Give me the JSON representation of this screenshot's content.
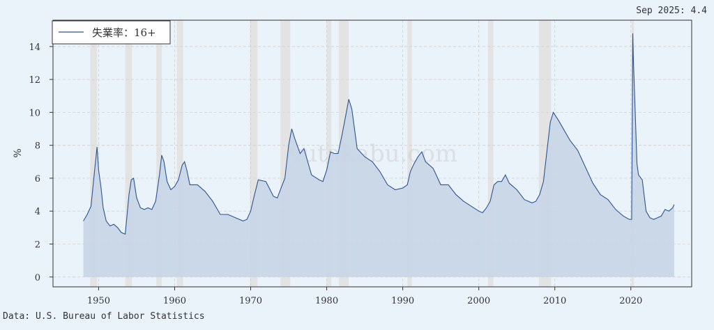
{
  "latest": "Sep 2025: 4.4",
  "source": "Data: U.S. Bureau of Labor Statistics",
  "watermark": "yutakabu.com",
  "chart_data": {
    "type": "area",
    "ylabel": "%",
    "legend": "失業率：16+",
    "legend_position": "top-left",
    "grid": true,
    "xlim": [
      1944.0,
      2028.0
    ],
    "ylim": [
      -0.6,
      15.6
    ],
    "xticks": [
      1950,
      1960,
      1970,
      1980,
      1990,
      2000,
      2010,
      2020
    ],
    "yticks": [
      0,
      2,
      4,
      6,
      8,
      10,
      12,
      14
    ],
    "colors": {
      "line": "#2b5493",
      "fill": "#c8d5e6",
      "recession": "#e3e3e3"
    },
    "recessions": [
      [
        1948.9,
        1949.8
      ],
      [
        1953.5,
        1954.4
      ],
      [
        1957.6,
        1958.3
      ],
      [
        1960.3,
        1961.1
      ],
      [
        1969.9,
        1970.9
      ],
      [
        1973.9,
        1975.2
      ],
      [
        1980.0,
        1980.6
      ],
      [
        1981.6,
        1982.9
      ],
      [
        1990.6,
        1991.2
      ],
      [
        2001.2,
        2001.9
      ],
      [
        2007.9,
        2009.5
      ],
      [
        2020.1,
        2020.4
      ]
    ],
    "series": [
      {
        "x": [
          1948.0,
          1948.5,
          1949.0,
          1949.5,
          1949.8,
          1950.0,
          1950.3,
          1950.6,
          1951.0,
          1951.5,
          1952.0,
          1952.5,
          1953.0,
          1953.5,
          1954.0,
          1954.3,
          1954.6,
          1955.0,
          1955.5,
          1956.0,
          1956.5,
          1957.0,
          1957.5,
          1958.0,
          1958.3,
          1958.6,
          1959.0,
          1959.5,
          1960.0,
          1960.5,
          1961.0,
          1961.3,
          1961.6,
          1962.0,
          1963.0,
          1964.0,
          1965.0,
          1966.0,
          1967.0,
          1968.0,
          1969.0,
          1969.5,
          1970.0,
          1970.5,
          1971.0,
          1972.0,
          1973.0,
          1973.5,
          1974.0,
          1974.5,
          1975.0,
          1975.4,
          1975.8,
          1976.5,
          1977.0,
          1978.0,
          1979.0,
          1979.5,
          1980.0,
          1980.5,
          1981.0,
          1981.5,
          1982.0,
          1982.5,
          1982.9,
          1983.3,
          1984.0,
          1985.0,
          1986.0,
          1987.0,
          1988.0,
          1989.0,
          1990.0,
          1990.6,
          1991.0,
          1991.5,
          1992.0,
          1992.5,
          1993.0,
          1994.0,
          1995.0,
          1996.0,
          1997.0,
          1998.0,
          1999.0,
          2000.0,
          2000.5,
          2001.0,
          2001.5,
          2002.0,
          2002.5,
          2003.0,
          2003.5,
          2004.0,
          2005.0,
          2006.0,
          2007.0,
          2007.5,
          2008.0,
          2008.5,
          2009.0,
          2009.4,
          2009.8,
          2010.5,
          2011.0,
          2012.0,
          2013.0,
          2014.0,
          2015.0,
          2016.0,
          2017.0,
          2018.0,
          2019.0,
          2019.8,
          2020.1,
          2020.25,
          2020.33,
          2020.5,
          2020.8,
          2021.0,
          2021.5,
          2022.0,
          2022.5,
          2023.0,
          2023.5,
          2024.0,
          2024.5,
          2025.0,
          2025.5,
          2025.7
        ],
        "y": [
          3.4,
          3.8,
          4.3,
          6.6,
          7.9,
          6.5,
          5.5,
          4.2,
          3.4,
          3.1,
          3.2,
          3.0,
          2.7,
          2.6,
          5.0,
          5.9,
          6.0,
          4.8,
          4.2,
          4.1,
          4.2,
          4.1,
          4.6,
          6.2,
          7.4,
          7.0,
          5.8,
          5.3,
          5.5,
          5.9,
          6.8,
          7.0,
          6.5,
          5.6,
          5.6,
          5.2,
          4.6,
          3.8,
          3.8,
          3.6,
          3.4,
          3.5,
          4.0,
          5.0,
          5.9,
          5.8,
          4.9,
          4.8,
          5.4,
          6.0,
          8.0,
          9.0,
          8.4,
          7.5,
          7.8,
          6.2,
          5.9,
          5.8,
          6.5,
          7.6,
          7.5,
          7.5,
          8.6,
          9.8,
          10.8,
          10.2,
          7.8,
          7.3,
          7.0,
          6.4,
          5.6,
          5.3,
          5.4,
          5.6,
          6.4,
          6.9,
          7.3,
          7.6,
          7.0,
          6.6,
          5.6,
          5.6,
          5.0,
          4.6,
          4.3,
          4.0,
          3.9,
          4.2,
          4.6,
          5.6,
          5.8,
          5.8,
          6.2,
          5.7,
          5.3,
          4.7,
          4.5,
          4.6,
          5.0,
          5.8,
          7.8,
          9.4,
          10.0,
          9.5,
          9.1,
          8.3,
          7.7,
          6.7,
          5.7,
          5.0,
          4.7,
          4.1,
          3.7,
          3.5,
          3.5,
          14.8,
          13.2,
          11.0,
          6.9,
          6.2,
          5.9,
          4.0,
          3.6,
          3.5,
          3.6,
          3.7,
          4.1,
          4.0,
          4.2,
          4.4
        ]
      }
    ]
  }
}
